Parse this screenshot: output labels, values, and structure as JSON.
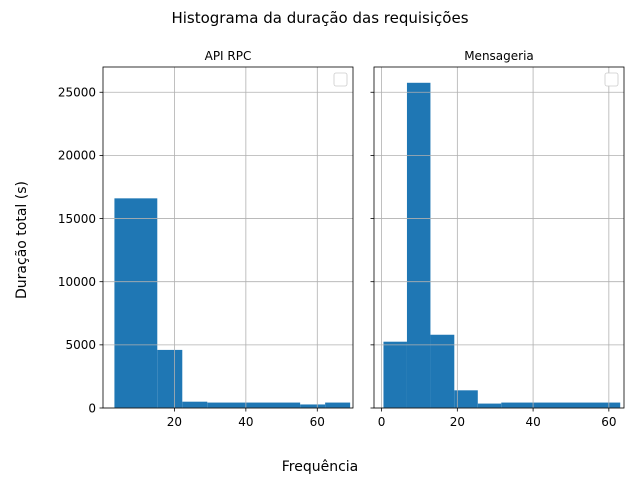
{
  "figure": {
    "title": "Histograma da duração das requisições",
    "xlabel": "Frequência",
    "ylabel": "Duração total (s)"
  },
  "chart_data": [
    {
      "type": "bar",
      "title": "API RPC",
      "xlim": [
        0,
        70
      ],
      "ylim": [
        0,
        27000
      ],
      "xticks": [
        20,
        40,
        60
      ],
      "yticks": [
        0,
        5000,
        10000,
        15000,
        20000,
        25000
      ],
      "grid": true,
      "legend": "top-right",
      "bars": [
        {
          "x0": 3.2,
          "x1": 15.2,
          "value": 16600
        },
        {
          "x0": 15.2,
          "x1": 22.2,
          "value": 4600
        },
        {
          "x0": 22.2,
          "x1": 29.2,
          "value": 500
        },
        {
          "x0": 29.2,
          "x1": 55.2,
          "value": 430
        },
        {
          "x0": 55.2,
          "x1": 62.2,
          "value": 280
        },
        {
          "x0": 62.2,
          "x1": 69.2,
          "value": 430
        }
      ]
    },
    {
      "type": "bar",
      "title": "Mensageria",
      "xlim": [
        -2,
        64
      ],
      "ylim": [
        0,
        27000
      ],
      "xticks": [
        0,
        20,
        40,
        60
      ],
      "yticks": [
        0,
        5000,
        10000,
        15000,
        20000,
        25000
      ],
      "grid": true,
      "legend": "top-right",
      "bars": [
        {
          "x0": 0.5,
          "x1": 6.7,
          "value": 5250
        },
        {
          "x0": 6.7,
          "x1": 12.9,
          "value": 25750
        },
        {
          "x0": 12.9,
          "x1": 19.2,
          "value": 5800
        },
        {
          "x0": 19.2,
          "x1": 25.4,
          "value": 1400
        },
        {
          "x0": 25.4,
          "x1": 31.6,
          "value": 350
        },
        {
          "x0": 31.6,
          "x1": 63.0,
          "value": 430
        }
      ]
    }
  ]
}
